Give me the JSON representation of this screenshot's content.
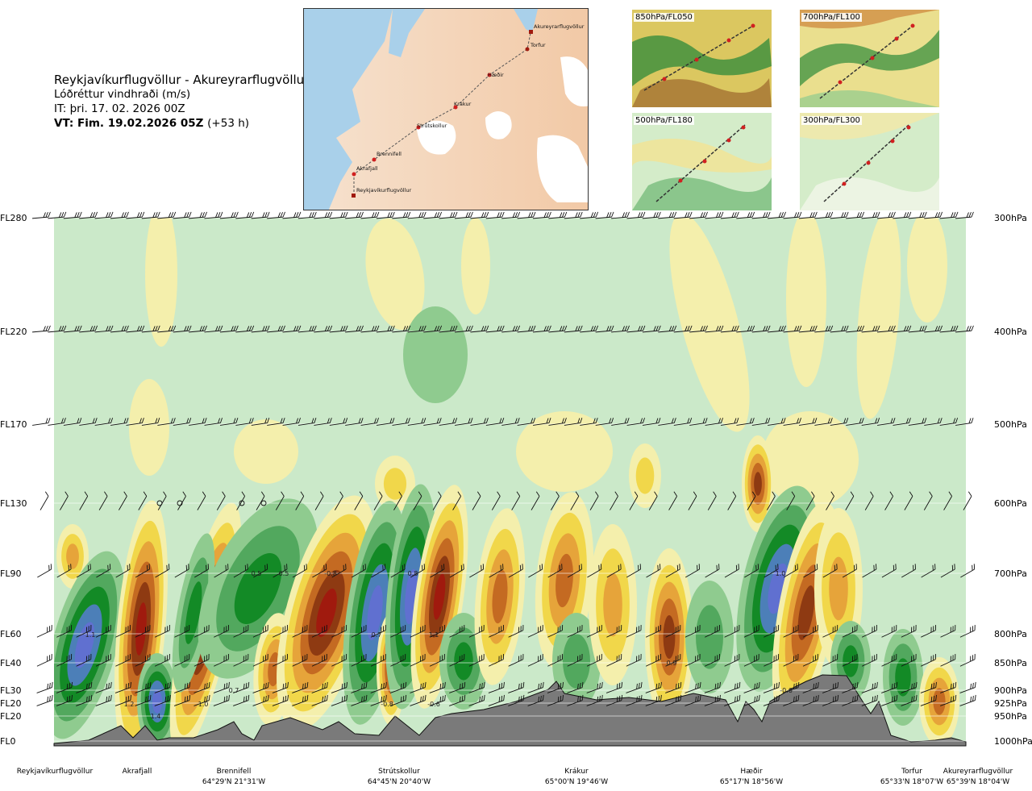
{
  "header": {
    "route": "Reykjavíkurflugvöllur - Akureyrarflugvöllur",
    "quantity": "Lóðréttur vindhraði (m/s)",
    "issue_time": "IT: þri. 17. 02. 2026 00Z",
    "valid_time": "VT: Fim. 19.02.2026 05Z",
    "lead_time": "(+53 h)"
  },
  "map": {
    "points": [
      "Akureyrarflugvöllur",
      "Torfur",
      "Hæðir",
      "Krákur",
      "Strútskollur",
      "Brennifell",
      "Akrafjall",
      "Reykjavíkurflugvöllur"
    ]
  },
  "thumbnails": [
    {
      "label": "850hPa/FL050"
    },
    {
      "label": "700hPa/FL100"
    },
    {
      "label": "500hPa/FL180"
    },
    {
      "label": "300hPa/FL300"
    }
  ],
  "chart_data": {
    "type": "heatmap",
    "title": "Lóðréttur vindhraði (m/s)",
    "x_locations": [
      {
        "name": "Reykjavíkurflugvöllur",
        "coord": ""
      },
      {
        "name": "Akrafjall",
        "coord": ""
      },
      {
        "name": "Brennifell",
        "coord": "64°29'N 21°31'W"
      },
      {
        "name": "Strútskollur",
        "coord": "64°45'N 20°40'W"
      },
      {
        "name": "Krákur",
        "coord": "65°00'N 19°46'W"
      },
      {
        "name": "Hæðir",
        "coord": "65°17'N 18°56'W"
      },
      {
        "name": "Torfur",
        "coord": "65°33'N 18°07'W"
      },
      {
        "name": "Akureyrarflugvöllur",
        "coord": "65°39'N 18°04'W"
      }
    ],
    "levels": [
      {
        "fl": "FL280",
        "hpa": "300hPa"
      },
      {
        "fl": "FL220",
        "hpa": "400hPa"
      },
      {
        "fl": "FL170",
        "hpa": "500hPa"
      },
      {
        "fl": "FL130",
        "hpa": "600hPa"
      },
      {
        "fl": "FL90",
        "hpa": "700hPa"
      },
      {
        "fl": "FL60",
        "hpa": "800hPa"
      },
      {
        "fl": "FL40",
        "hpa": "850hPa"
      },
      {
        "fl": "FL30",
        "hpa": "900hPa"
      },
      {
        "fl": "FL20",
        "hpa": "925hPa"
      },
      {
        "fl": "FL20",
        "hpa": "950hPa"
      },
      {
        "fl": "FL0",
        "hpa": "1000hPa"
      }
    ],
    "value_labels": [
      "1.1",
      "1.2",
      "1.4",
      "1.0",
      "0.7",
      "0.5",
      "0.5",
      "-0.8",
      "0.7",
      "-0.8",
      "0.8",
      "1.1",
      "-0.6",
      "0.9",
      "-0.6",
      "1.0"
    ],
    "colors": {
      "strong_up": "#6070d0",
      "up_blue": "#4c7fb8",
      "up_dark": "#138a26",
      "up_mid": "#52a85e",
      "up_light": "#8fcb8f",
      "neutral_up": "#cbe9c9",
      "neutral_down": "#f4efac",
      "down_light": "#f1d74a",
      "down_mid": "#e6a43a",
      "down_dark": "#c46a22",
      "strong_down": "#8e3a12",
      "strongest_down": "#a01a0e",
      "terrain": "#7a7a7a"
    }
  }
}
